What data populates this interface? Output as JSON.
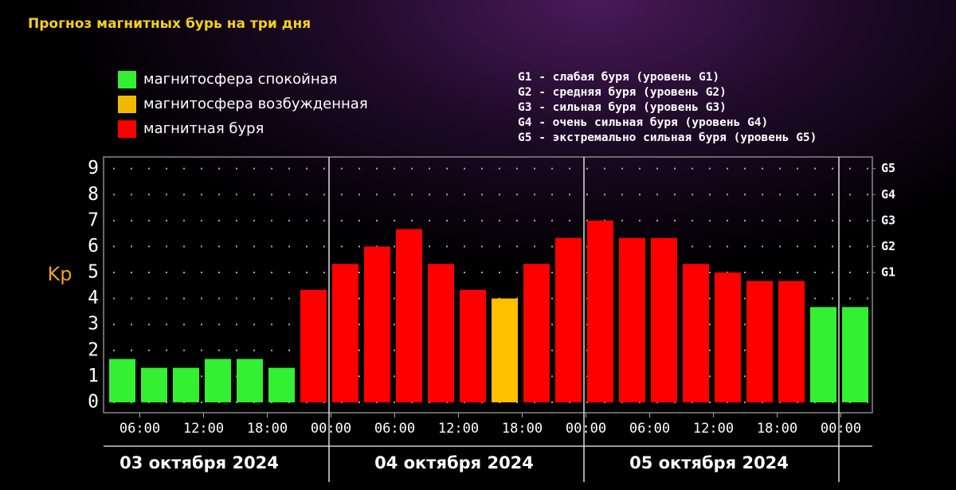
{
  "chart_data": {
    "type": "bar",
    "title": "Прогноз магнитных бурь на три дня",
    "legend": [
      {
        "name": "магнитосфера спокойная",
        "color": "#33f033"
      },
      {
        "name": "магнитосфера возбужденная",
        "color": "#f0b800"
      },
      {
        "name": "магнитная буря",
        "color": "#ff0000"
      }
    ],
    "storm_levels": [
      "G1 - слабая буря (уровень G1)",
      "G2 - средняя буря (уровень G2)",
      "G3 - сильная буря (уровень G3)",
      "G4 - очень сильная буря (уровень G4)",
      "G5 - экстремально сильная буря (уровень G5)"
    ],
    "y_label": "Kp",
    "categories": [
      null,
      null,
      null,
      null,
      null,
      null,
      null,
      null,
      null,
      null,
      null,
      null,
      null,
      null,
      null,
      null,
      null,
      null,
      null,
      null,
      null,
      null,
      null,
      null
    ],
    "values": [
      1.67,
      1.33,
      1.33,
      1.67,
      1.67,
      1.33,
      4.33,
      5.33,
      6,
      6.67,
      5.33,
      4.33,
      4,
      5.33,
      6.33,
      7,
      6.33,
      6.33,
      5.33,
      5,
      4.67,
      4.67,
      3.67,
      3.67
    ],
    "colors": [
      "#33f033",
      "#33f033",
      "#33f033",
      "#33f033",
      "#33f033",
      "#33f033",
      "#ff0000",
      "#ff0000",
      "#ff0000",
      "#ff0000",
      "#ff0000",
      "#ff0000",
      "#ffc000",
      "#ff0000",
      "#ff0000",
      "#ff0000",
      "#ff0000",
      "#ff0000",
      "#ff0000",
      "#ff0000",
      "#ff0000",
      "#ff0000",
      "#33f033",
      "#33f033"
    ],
    "time_labels": [
      "06:00",
      "12:00",
      "18:00",
      "00:00",
      "06:00",
      "12:00",
      "18:00",
      "00:00",
      "06:00",
      "12:00",
      "18:00",
      "00:00"
    ],
    "days": [
      "03 октября 2024",
      "04 октября 2024",
      "05 октября 2024"
    ],
    "ylim": [
      -0.4,
      9.45
    ],
    "yticks": [
      0,
      1,
      2,
      3,
      4,
      5,
      6,
      7,
      8,
      9
    ],
    "y2lim": [
      -0.4,
      9.45
    ],
    "y2ticks": [
      {
        "value": 5,
        "label": "G1"
      },
      {
        "value": 6,
        "label": "G2"
      },
      {
        "value": 7,
        "label": "G3"
      },
      {
        "value": 8,
        "label": "G4"
      },
      {
        "value": 9,
        "label": "G5"
      }
    ],
    "grid": true
  }
}
